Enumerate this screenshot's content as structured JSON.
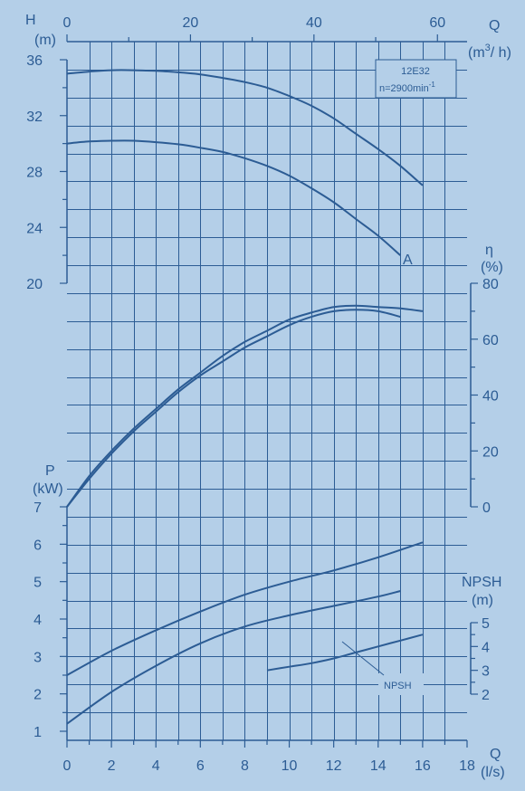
{
  "chart_data": {
    "type": "line",
    "model": "12E32",
    "speed": "n=2900min",
    "speed_exp": "-1",
    "grid": true,
    "x_bottom": {
      "label": "Q",
      "unit": "(l/s)",
      "range": [
        0,
        18
      ],
      "ticks": [
        "0",
        "2",
        "4",
        "6",
        "8",
        "10",
        "12",
        "14",
        "16",
        "18"
      ]
    },
    "x_top": {
      "label": "Q",
      "unit_base": "(m",
      "unit_exp": "3",
      "unit_tail": "/ h)",
      "range": [
        0,
        64.8
      ],
      "ticks": [
        "0",
        "20",
        "40",
        "60"
      ]
    },
    "head": {
      "label": "H",
      "unit": "(m)",
      "range": [
        20,
        36
      ],
      "ticks": [
        "20",
        "24",
        "28",
        "32",
        "36"
      ],
      "curve_label": "A",
      "series": [
        {
          "x": [
            0,
            1,
            2,
            3,
            4,
            5,
            6,
            7,
            8,
            9,
            10,
            11,
            12,
            13,
            14,
            15,
            16
          ],
          "y": [
            35.0,
            35.15,
            35.25,
            35.25,
            35.2,
            35.1,
            34.95,
            34.7,
            34.4,
            34.0,
            33.4,
            32.7,
            31.8,
            30.7,
            29.6,
            28.4,
            27.0
          ]
        },
        {
          "x": [
            0,
            1,
            2,
            3,
            4,
            5,
            6,
            7,
            8,
            9,
            10,
            11,
            12,
            13,
            14,
            15
          ],
          "y": [
            30.0,
            30.15,
            30.2,
            30.2,
            30.1,
            29.95,
            29.7,
            29.4,
            28.95,
            28.4,
            27.7,
            26.8,
            25.8,
            24.6,
            23.4,
            22.0
          ]
        }
      ]
    },
    "efficiency": {
      "label": "η",
      "unit": "(%)",
      "range": [
        0,
        80
      ],
      "ticks": [
        "0",
        "20",
        "40",
        "60",
        "80"
      ],
      "series": [
        {
          "x": [
            0,
            1,
            2,
            3,
            4,
            5,
            6,
            7,
            8,
            9,
            10,
            11,
            12,
            13,
            14,
            15,
            16
          ],
          "y": [
            0,
            11,
            20,
            28,
            35,
            42,
            48,
            54,
            59,
            63,
            67,
            69.5,
            71.5,
            72,
            71.5,
            71,
            70
          ]
        },
        {
          "x": [
            0,
            1,
            2,
            3,
            4,
            5,
            6,
            7,
            8,
            9,
            10,
            11,
            12,
            13,
            14,
            15
          ],
          "y": [
            0,
            10,
            19,
            27,
            34,
            41,
            47,
            52,
            57,
            61,
            65,
            68,
            70,
            70.5,
            70,
            68
          ]
        }
      ]
    },
    "power": {
      "label": "P",
      "unit": "(kW)",
      "range": [
        1,
        7
      ],
      "ticks": [
        "1",
        "2",
        "3",
        "4",
        "5",
        "6",
        "7"
      ],
      "series": [
        {
          "x": [
            0,
            2,
            4,
            6,
            8,
            10,
            12,
            14,
            16
          ],
          "y": [
            2.5,
            3.15,
            3.7,
            4.2,
            4.65,
            5.0,
            5.3,
            5.65,
            6.05
          ]
        },
        {
          "x": [
            0,
            2,
            4,
            6,
            8,
            10,
            12,
            14,
            15
          ],
          "y": [
            1.2,
            2.05,
            2.75,
            3.35,
            3.8,
            4.1,
            4.35,
            4.6,
            4.75
          ]
        }
      ]
    },
    "npsh": {
      "label": "NPSH",
      "unit": "(m)",
      "range": [
        2,
        5
      ],
      "ticks": [
        "2",
        "3",
        "4",
        "5"
      ],
      "curve_label": "NPSH",
      "series": [
        {
          "x": [
            9,
            10,
            11,
            12,
            13,
            14,
            15,
            16
          ],
          "y": [
            3.0,
            3.15,
            3.3,
            3.5,
            3.75,
            4.0,
            4.25,
            4.5
          ]
        }
      ]
    }
  }
}
